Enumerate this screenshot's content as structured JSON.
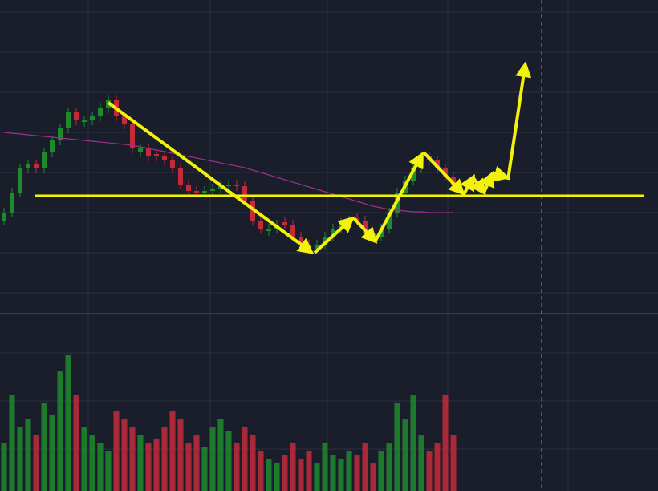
{
  "chart_data": {
    "type": "candlestick",
    "up_color": "#1f8a2c",
    "down_color": "#c42a3a",
    "open": [
      115,
      125,
      150,
      180,
      185,
      180,
      200,
      215,
      230,
      250,
      238,
      240,
      245,
      255,
      265,
      245,
      235,
      200,
      205,
      198,
      195,
      190,
      180,
      160,
      152,
      150,
      152,
      155,
      158,
      160,
      158,
      140,
      115,
      102,
      105,
      113,
      110,
      95,
      85,
      80,
      85,
      95,
      105,
      112,
      118,
      115,
      100,
      95,
      105,
      125,
      150,
      165,
      180,
      195,
      190,
      180,
      170
    ],
    "high": [
      131,
      156,
      186,
      191,
      191,
      206,
      221,
      236,
      256,
      256,
      246,
      251,
      261,
      271,
      271,
      251,
      241,
      211,
      211,
      204,
      201,
      196,
      186,
      166,
      158,
      158,
      161,
      164,
      166,
      166,
      164,
      146,
      121,
      111,
      116,
      119,
      116,
      101,
      91,
      91,
      101,
      111,
      118,
      121,
      124,
      121,
      106,
      111,
      131,
      156,
      171,
      186,
      201,
      201,
      196,
      186,
      176
    ],
    "low": [
      109,
      119,
      144,
      174,
      174,
      174,
      194,
      209,
      224,
      234,
      232,
      234,
      239,
      249,
      239,
      229,
      199,
      194,
      189,
      189,
      184,
      174,
      154,
      146,
      144,
      144,
      146,
      149,
      152,
      152,
      134,
      109,
      99,
      96,
      99,
      104,
      89,
      79,
      74,
      74,
      79,
      89,
      99,
      106,
      109,
      94,
      89,
      89,
      99,
      119,
      144,
      159,
      174,
      184,
      174,
      164,
      154
    ],
    "close": [
      125,
      150,
      180,
      185,
      180,
      200,
      215,
      230,
      250,
      240,
      240,
      245,
      255,
      265,
      245,
      235,
      205,
      205,
      195,
      195,
      190,
      180,
      160,
      152,
      150,
      152,
      155,
      158,
      160,
      158,
      140,
      115,
      105,
      105,
      110,
      110,
      95,
      85,
      80,
      85,
      95,
      105,
      112,
      115,
      115,
      100,
      95,
      105,
      125,
      150,
      165,
      180,
      195,
      190,
      180,
      170,
      160
    ],
    "volume": [
      60,
      120,
      80,
      90,
      70,
      110,
      95,
      150,
      170,
      120,
      80,
      70,
      60,
      50,
      100,
      90,
      80,
      70,
      60,
      65,
      80,
      100,
      90,
      60,
      70,
      55,
      80,
      90,
      75,
      60,
      80,
      70,
      50,
      40,
      35,
      45,
      60,
      40,
      50,
      35,
      60,
      45,
      40,
      50,
      45,
      60,
      35,
      50,
      60,
      110,
      90,
      120,
      70,
      50,
      60,
      120,
      70
    ],
    "ma": {
      "color": "#9b2f8a",
      "values": [
        225,
        224,
        223,
        222,
        221,
        220,
        219,
        218,
        217,
        216,
        215,
        214,
        213,
        212,
        211,
        210,
        209,
        207,
        205,
        203,
        201,
        199,
        197,
        195,
        193,
        191,
        189,
        187,
        185,
        183,
        181,
        178,
        175,
        172,
        169,
        166,
        163,
        160,
        157,
        154,
        151,
        148,
        145,
        142,
        139,
        136,
        133,
        131,
        129,
        128,
        127,
        126,
        126,
        125,
        125,
        125,
        125
      ]
    },
    "ylim": [
      0,
      390
    ],
    "volume_ylim": [
      0,
      220
    ]
  }
}
